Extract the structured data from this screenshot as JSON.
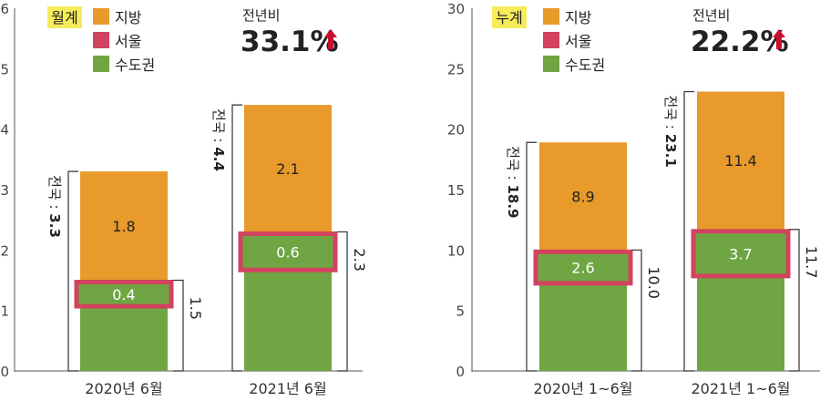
{
  "colors": {
    "local": "#E89A2B",
    "seoul": "#D2435F",
    "capital": "#6FA643",
    "axis": "#555555",
    "text": "#222222",
    "tag_bg": "#F6EB5A",
    "arrow": "#C8102E"
  },
  "chart_data": [
    {
      "type": "bar",
      "tag": "월계",
      "legend": [
        "지방",
        "서울",
        "수도권"
      ],
      "yoy_label": "전년비",
      "yoy_value": "33.1%",
      "ylim": [
        0,
        6
      ],
      "yticks": [
        0,
        1,
        2,
        3,
        4,
        5,
        6
      ],
      "categories": [
        "2020년 6월",
        "2021년 6월"
      ],
      "series": [
        {
          "name": "수도권",
          "values": [
            1.5,
            2.3
          ]
        },
        {
          "name": "지방",
          "values": [
            1.8,
            2.1
          ]
        }
      ],
      "seoul_values": [
        0.4,
        0.6
      ],
      "seoul_labels": [
        "0.4",
        "0.6"
      ],
      "local_labels": [
        "1.8",
        "2.1"
      ],
      "capital_labels": [
        "1.5",
        "2.3"
      ],
      "total_labels": [
        "전국 : 3.3",
        "전국 : 4.4"
      ],
      "total_prefix": "전국 : ",
      "total_values": [
        "3.3",
        "4.4"
      ]
    },
    {
      "type": "bar",
      "tag": "누계",
      "legend": [
        "지방",
        "서울",
        "수도권"
      ],
      "yoy_label": "전년비",
      "yoy_value": "22.2%",
      "ylim": [
        0,
        30
      ],
      "yticks": [
        0,
        5,
        10,
        15,
        20,
        25,
        30
      ],
      "categories": [
        "2020년 1~6월",
        "2021년 1~6월"
      ],
      "series": [
        {
          "name": "수도권",
          "values": [
            10.0,
            11.7
          ]
        },
        {
          "name": "지방",
          "values": [
            8.9,
            11.4
          ]
        }
      ],
      "seoul_values": [
        2.6,
        3.7
      ],
      "seoul_labels": [
        "2.6",
        "3.7"
      ],
      "local_labels": [
        "8.9",
        "11.4"
      ],
      "capital_labels": [
        "10.0",
        "11.7"
      ],
      "total_labels": [
        "전국 : 18.9",
        "전국 : 23.1"
      ],
      "total_prefix": "전국 : ",
      "total_values": [
        "18.9",
        "23.1"
      ]
    }
  ]
}
